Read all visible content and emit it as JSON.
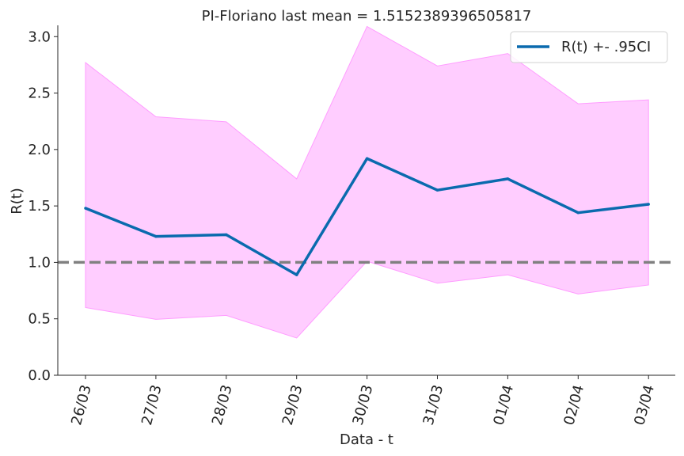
{
  "chart_data": {
    "type": "line",
    "title": "PI-Floriano last mean = 1.5152389396505817",
    "xlabel": "Data - t",
    "ylabel": "R(t)",
    "categories": [
      "26/03",
      "27/03",
      "28/03",
      "29/03",
      "30/03",
      "31/03",
      "01/04",
      "02/04",
      "03/04"
    ],
    "series": [
      {
        "name": "R(t) +- .95CI",
        "values": [
          1.48,
          1.23,
          1.245,
          0.89,
          1.92,
          1.64,
          1.74,
          1.44,
          1.515
        ],
        "lower": [
          0.6,
          0.495,
          0.53,
          0.33,
          1.01,
          0.815,
          0.89,
          0.72,
          0.8
        ],
        "upper": [
          2.77,
          2.29,
          2.245,
          1.74,
          3.09,
          2.74,
          2.85,
          2.405,
          2.44
        ]
      }
    ],
    "reference_line": 1.0,
    "ylim": [
      0.0,
      3.1
    ],
    "yticks": [
      "0.0",
      "0.5",
      "1.0",
      "1.5",
      "2.0",
      "2.5",
      "3.0"
    ],
    "legend": "upper right",
    "grid": false,
    "colors": {
      "line": "#0a6aae",
      "band": "#ff9cff",
      "reference": "#808080"
    }
  }
}
